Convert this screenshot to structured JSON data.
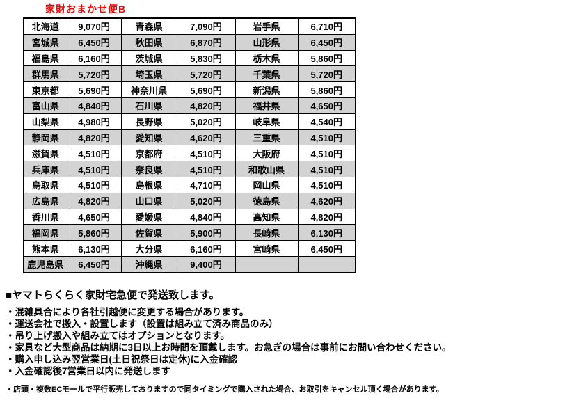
{
  "title": "家財おまかせ便B",
  "colors": {
    "title_red": "#ff0000",
    "row_alt_gray": "#d3d3d3",
    "border_black": "#000000"
  },
  "table": {
    "rows": [
      [
        "北海道",
        "9,070円",
        "青森県",
        "7,090円",
        "岩手県",
        "6,710円"
      ],
      [
        "宮城県",
        "6,450円",
        "秋田県",
        "6,870円",
        "山形県",
        "6,450円"
      ],
      [
        "福島県",
        "6,160円",
        "茨城県",
        "5,830円",
        "栃木県",
        "5,860円"
      ],
      [
        "群馬県",
        "5,720円",
        "埼玉県",
        "5,720円",
        "千葉県",
        "5,720円"
      ],
      [
        "東京都",
        "5,690円",
        "神奈川県",
        "5,690円",
        "新潟県",
        "5,860円"
      ],
      [
        "富山県",
        "4,840円",
        "石川県",
        "4,820円",
        "福井県",
        "4,650円"
      ],
      [
        "山梨県",
        "4,980円",
        "長野県",
        "5,020円",
        "岐阜県",
        "4,540円"
      ],
      [
        "静岡県",
        "4,820円",
        "愛知県",
        "4,620円",
        "三重県",
        "4,510円"
      ],
      [
        "滋賀県",
        "4,510円",
        "京都府",
        "4,510円",
        "大阪府",
        "4,510円"
      ],
      [
        "兵庫県",
        "4,510円",
        "奈良県",
        "4,510円",
        "和歌山県",
        "4,510円"
      ],
      [
        "鳥取県",
        "4,510円",
        "島根県",
        "4,710円",
        "岡山県",
        "4,510円"
      ],
      [
        "広島県",
        "4,820円",
        "山口県",
        "5,020円",
        "徳島県",
        "4,620円"
      ],
      [
        "香川県",
        "4,650円",
        "愛媛県",
        "4,840円",
        "高知県",
        "4,820円"
      ],
      [
        "福岡県",
        "5,860円",
        "佐賀県",
        "5,900円",
        "長崎県",
        "6,130円"
      ],
      [
        "熊本県",
        "6,130円",
        "大分県",
        "6,160円",
        "宮崎県",
        "6,450円"
      ],
      [
        "鹿児島県",
        "6,450円",
        "沖縄県",
        "9,400円",
        "",
        ""
      ]
    ]
  },
  "notes": {
    "heading": "■ヤマトらくらく家財宅急便で発送致します。",
    "bullets": [
      "・混雑具合により各社引越便に変更する場合があります。",
      "・運送会社で搬入・設置します（設置は組み立て済み商品のみ）",
      "・吊り上げ搬入や組み立てはオプションとなります。",
      "・家具など大型商品は納期に3日以上お時間を頂戴します。お急ぎの場合は事前にお問い合わせください。",
      "・購入申し込み翌営業日(土日祝祭日は定休)に入金確認",
      "・入金確認後7営業日以内に発送します"
    ],
    "footnote": "・店頭・複数ECモールで平行販売しておりますので同タイミングで購入された場合、お取引をキャンセル頂く場合があります。"
  }
}
